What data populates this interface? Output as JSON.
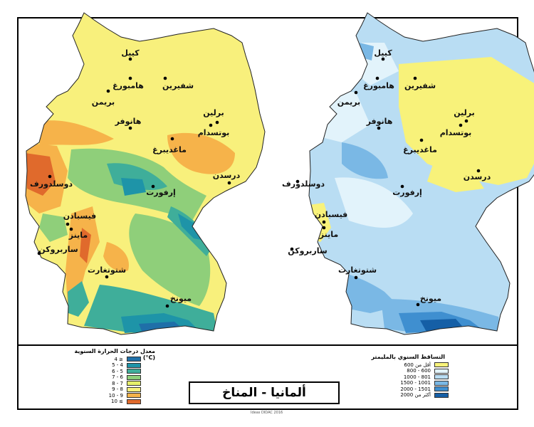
{
  "title": "ألمانيا - المناخ",
  "credit": "Ideas DIDAC 2016",
  "temperature_legend": {
    "title": "معدل درجات الحرارة السنوية (C°)",
    "items": [
      {
        "label": "4 ≥",
        "color": "#1f6fa8"
      },
      {
        "label": "5 - 4",
        "color": "#1e94a8"
      },
      {
        "label": "6 - 5",
        "color": "#3fae9a"
      },
      {
        "label": "7 - 6",
        "color": "#8fcf7a"
      },
      {
        "label": "8 - 7",
        "color": "#e6ef6a"
      },
      {
        "label": "9 - 8",
        "color": "#f8f07c"
      },
      {
        "label": "10 - 9",
        "color": "#f6b34a"
      },
      {
        "label": "10 ≤",
        "color": "#e06a2c"
      }
    ]
  },
  "precipitation_legend": {
    "title": "التساقط السنوي بالمليمتر",
    "items": [
      {
        "label": "أقل من 600",
        "color": "#f8f27a"
      },
      {
        "label": "800 - 600",
        "color": "#e2f3fb"
      },
      {
        "label": "1000 - 801",
        "color": "#b9ddf3"
      },
      {
        "label": "1500 - 1001",
        "color": "#7ab8e5"
      },
      {
        "label": "2000 - 1501",
        "color": "#3f8fd0"
      },
      {
        "label": "أكثر من 2000",
        "color": "#155fa6"
      }
    ]
  },
  "cities": {
    "kiel": "كييل",
    "schwerin": "شفيرين",
    "hamburg": "هامبورغ",
    "bremen": "بريمن",
    "berlin": "برلين",
    "potsdam": "بوتسدام",
    "hannover": "هانوفر",
    "magdeburg": "ماغديبرغ",
    "dresden": "درسدن",
    "duesseldorf": "دوسلدورف",
    "erfurt": "إرفورت",
    "wiesbaden": "فيسبادن",
    "mainz": "ماينز",
    "saarbruecken": "ساربروكن",
    "stuttgart": "شتوتغارت",
    "munich": "ميونخ"
  }
}
